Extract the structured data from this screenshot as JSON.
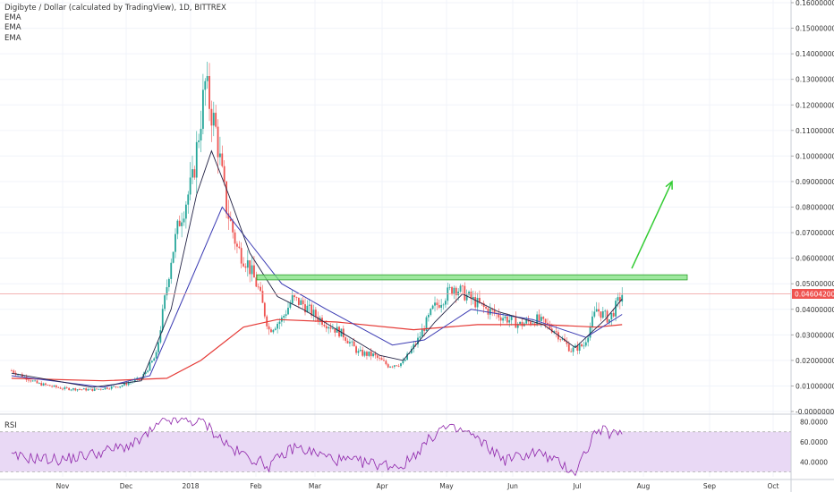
{
  "header": {
    "title": "Digibyte / Dollar (calculated by TradingView), 1D, BITTREX",
    "indicators": [
      "EMA",
      "EMA",
      "EMA"
    ]
  },
  "colors": {
    "up": "#26a69a",
    "down": "#ef5350",
    "ema_fast": "#222244",
    "ema_mid": "#3b3bb3",
    "ema_slow": "#e53935",
    "resistance_fill": "#7ee07e",
    "resistance_stroke": "#2ca02c",
    "arrow": "#33cc33",
    "price_line": "#ef9a9a",
    "rsi_line": "#8e24aa",
    "rsi_band": "#e9d9f5",
    "grid": "#f0f3fa"
  },
  "chart_data": [
    {
      "type": "candlestick",
      "title": "Digibyte / Dollar (calculated by TradingView), 1D, BITTREX",
      "x_ticks": [
        "Nov",
        "Dec",
        "2018",
        "Feb",
        "Mar",
        "Apr",
        "May",
        "Jun",
        "Jul",
        "Aug",
        "Sep",
        "Oct"
      ],
      "y_ticks": [
        "0.16000000",
        "0.15000000",
        "0.14000000",
        "0.13000000",
        "0.12000000",
        "0.11000000",
        "0.10000000",
        "0.09000000",
        "0.08000000",
        "0.07000000",
        "0.06000000",
        "0.05000000",
        "0.04000000",
        "0.03000000",
        "0.02000000",
        "0.01000000",
        "-0.00000000"
      ],
      "ylim": [
        0,
        0.16
      ],
      "grid": true,
      "last_price": "0.04604200",
      "resistance_zone": [
        0.0515,
        0.0535
      ],
      "projection_arrow": {
        "from_price": 0.056,
        "to_price": 0.09,
        "from_month": "Jul",
        "to_month": "Aug"
      },
      "close_path": [
        {
          "date": "2017-10-08",
          "close": 0.016
        },
        {
          "date": "2017-10-20",
          "close": 0.011
        },
        {
          "date": "2017-11-01",
          "close": 0.009
        },
        {
          "date": "2017-11-15",
          "close": 0.0085
        },
        {
          "date": "2017-11-28",
          "close": 0.01
        },
        {
          "date": "2017-12-08",
          "close": 0.013
        },
        {
          "date": "2017-12-15",
          "close": 0.022
        },
        {
          "date": "2017-12-22",
          "close": 0.06
        },
        {
          "date": "2017-12-26",
          "close": 0.075
        },
        {
          "date": "2018-01-01",
          "close": 0.09
        },
        {
          "date": "2018-01-07",
          "close": 0.128
        },
        {
          "date": "2018-01-12",
          "close": 0.11
        },
        {
          "date": "2018-01-17",
          "close": 0.08
        },
        {
          "date": "2018-01-22",
          "close": 0.064
        },
        {
          "date": "2018-01-27",
          "close": 0.058
        },
        {
          "date": "2018-02-01",
          "close": 0.048
        },
        {
          "date": "2018-02-06",
          "close": 0.032
        },
        {
          "date": "2018-02-12",
          "close": 0.036
        },
        {
          "date": "2018-02-17",
          "close": 0.044
        },
        {
          "date": "2018-02-22",
          "close": 0.042
        },
        {
          "date": "2018-02-27",
          "close": 0.038
        },
        {
          "date": "2018-03-06",
          "close": 0.034
        },
        {
          "date": "2018-03-13",
          "close": 0.03
        },
        {
          "date": "2018-03-20",
          "close": 0.023
        },
        {
          "date": "2018-03-27",
          "close": 0.022
        },
        {
          "date": "2018-04-03",
          "close": 0.018
        },
        {
          "date": "2018-04-10",
          "close": 0.019
        },
        {
          "date": "2018-04-17",
          "close": 0.028
        },
        {
          "date": "2018-04-24",
          "close": 0.04
        },
        {
          "date": "2018-05-04",
          "close": 0.049
        },
        {
          "date": "2018-05-12",
          "close": 0.044
        },
        {
          "date": "2018-05-19",
          "close": 0.04
        },
        {
          "date": "2018-05-27",
          "close": 0.037
        },
        {
          "date": "2018-06-04",
          "close": 0.034
        },
        {
          "date": "2018-06-12",
          "close": 0.036
        },
        {
          "date": "2018-06-20",
          "close": 0.032
        },
        {
          "date": "2018-06-28",
          "close": 0.024
        },
        {
          "date": "2018-07-04",
          "close": 0.026
        },
        {
          "date": "2018-07-10",
          "close": 0.04
        },
        {
          "date": "2018-07-16",
          "close": 0.036
        },
        {
          "date": "2018-07-22",
          "close": 0.046
        }
      ],
      "ema_fast": [
        {
          "date": "2017-10-08",
          "value": 0.015
        },
        {
          "date": "2017-11-15",
          "value": 0.0095
        },
        {
          "date": "2017-12-08",
          "value": 0.012
        },
        {
          "date": "2017-12-22",
          "value": 0.04
        },
        {
          "date": "2018-01-03",
          "value": 0.085
        },
        {
          "date": "2018-01-10",
          "value": 0.102
        },
        {
          "date": "2018-01-18",
          "value": 0.085
        },
        {
          "date": "2018-01-28",
          "value": 0.062
        },
        {
          "date": "2018-02-10",
          "value": 0.045
        },
        {
          "date": "2018-02-22",
          "value": 0.04
        },
        {
          "date": "2018-03-10",
          "value": 0.032
        },
        {
          "date": "2018-03-30",
          "value": 0.022
        },
        {
          "date": "2018-04-10",
          "value": 0.02
        },
        {
          "date": "2018-04-25",
          "value": 0.035
        },
        {
          "date": "2018-05-08",
          "value": 0.046
        },
        {
          "date": "2018-05-25",
          "value": 0.039
        },
        {
          "date": "2018-06-15",
          "value": 0.034
        },
        {
          "date": "2018-06-30",
          "value": 0.025
        },
        {
          "date": "2018-07-14",
          "value": 0.036
        },
        {
          "date": "2018-07-22",
          "value": 0.044
        }
      ],
      "ema_mid": [
        {
          "date": "2017-10-08",
          "value": 0.014
        },
        {
          "date": "2017-11-20",
          "value": 0.0095
        },
        {
          "date": "2017-12-12",
          "value": 0.014
        },
        {
          "date": "2017-12-28",
          "value": 0.045
        },
        {
          "date": "2018-01-15",
          "value": 0.08
        },
        {
          "date": "2018-01-28",
          "value": 0.066
        },
        {
          "date": "2018-02-12",
          "value": 0.05
        },
        {
          "date": "2018-03-05",
          "value": 0.04
        },
        {
          "date": "2018-04-05",
          "value": 0.026
        },
        {
          "date": "2018-04-20",
          "value": 0.028
        },
        {
          "date": "2018-05-12",
          "value": 0.04
        },
        {
          "date": "2018-06-10",
          "value": 0.036
        },
        {
          "date": "2018-07-05",
          "value": 0.029
        },
        {
          "date": "2018-07-22",
          "value": 0.038
        }
      ],
      "ema_slow": [
        {
          "date": "2017-10-08",
          "value": 0.013
        },
        {
          "date": "2017-11-20",
          "value": 0.012
        },
        {
          "date": "2017-12-20",
          "value": 0.013
        },
        {
          "date": "2018-01-05",
          "value": 0.02
        },
        {
          "date": "2018-01-25",
          "value": 0.033
        },
        {
          "date": "2018-02-10",
          "value": 0.036
        },
        {
          "date": "2018-03-10",
          "value": 0.035
        },
        {
          "date": "2018-04-15",
          "value": 0.032
        },
        {
          "date": "2018-05-15",
          "value": 0.034
        },
        {
          "date": "2018-06-15",
          "value": 0.034
        },
        {
          "date": "2018-07-10",
          "value": 0.033
        },
        {
          "date": "2018-07-22",
          "value": 0.034
        }
      ]
    },
    {
      "type": "line",
      "title": "RSI",
      "y_ticks": [
        "80.0000",
        "60.0000",
        "40.0000"
      ],
      "ylim": [
        25,
        85
      ],
      "band": [
        30,
        70
      ],
      "values": [
        {
          "date": "2017-10-08",
          "value": 45
        },
        {
          "date": "2017-11-01",
          "value": 42
        },
        {
          "date": "2017-11-20",
          "value": 50
        },
        {
          "date": "2017-12-05",
          "value": 58
        },
        {
          "date": "2017-12-20",
          "value": 82
        },
        {
          "date": "2018-01-06",
          "value": 80
        },
        {
          "date": "2018-01-20",
          "value": 52
        },
        {
          "date": "2018-02-06",
          "value": 36
        },
        {
          "date": "2018-02-18",
          "value": 55
        },
        {
          "date": "2018-03-10",
          "value": 42
        },
        {
          "date": "2018-03-28",
          "value": 38
        },
        {
          "date": "2018-04-10",
          "value": 36
        },
        {
          "date": "2018-04-28",
          "value": 74
        },
        {
          "date": "2018-05-10",
          "value": 70
        },
        {
          "date": "2018-05-28",
          "value": 42
        },
        {
          "date": "2018-06-12",
          "value": 50
        },
        {
          "date": "2018-06-30",
          "value": 30
        },
        {
          "date": "2018-07-10",
          "value": 72
        },
        {
          "date": "2018-07-22",
          "value": 66
        }
      ]
    }
  ]
}
